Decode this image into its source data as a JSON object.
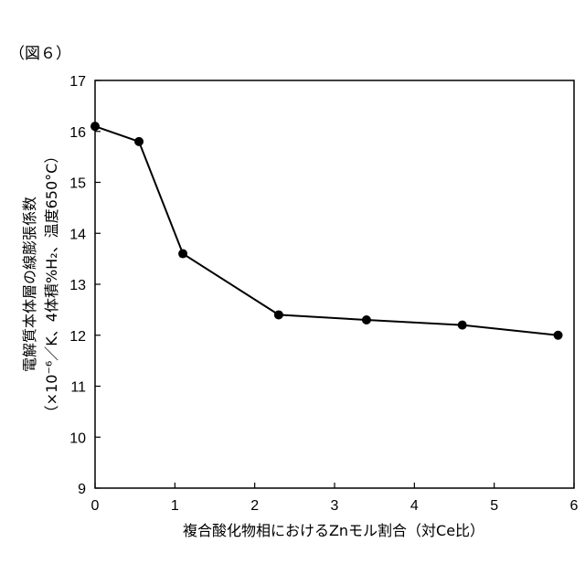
{
  "figure_label": "（図６）",
  "chart_data": {
    "type": "line",
    "title": "",
    "xlabel": "複合酸化物相におけるZnモル割合（対Ce比）",
    "ylabel_line1": "電解質本体層の線膨張係数",
    "ylabel_line2": "（×10⁻⁶／K、4体積%H₂、温度650°C）",
    "xlim": [
      0,
      6
    ],
    "ylim": [
      9,
      17
    ],
    "xticks": [
      "0",
      "1",
      "2",
      "3",
      "4",
      "5",
      "6"
    ],
    "yticks": [
      "9",
      "10",
      "11",
      "12",
      "13",
      "14",
      "15",
      "16",
      "17"
    ],
    "x": [
      0,
      0.55,
      1.1,
      2.3,
      3.4,
      4.6,
      5.8
    ],
    "y": [
      16.1,
      15.8,
      13.6,
      12.4,
      12.3,
      12.2,
      12.0
    ],
    "grid": false,
    "marker": "filled-circle",
    "line_color": "#000000"
  }
}
